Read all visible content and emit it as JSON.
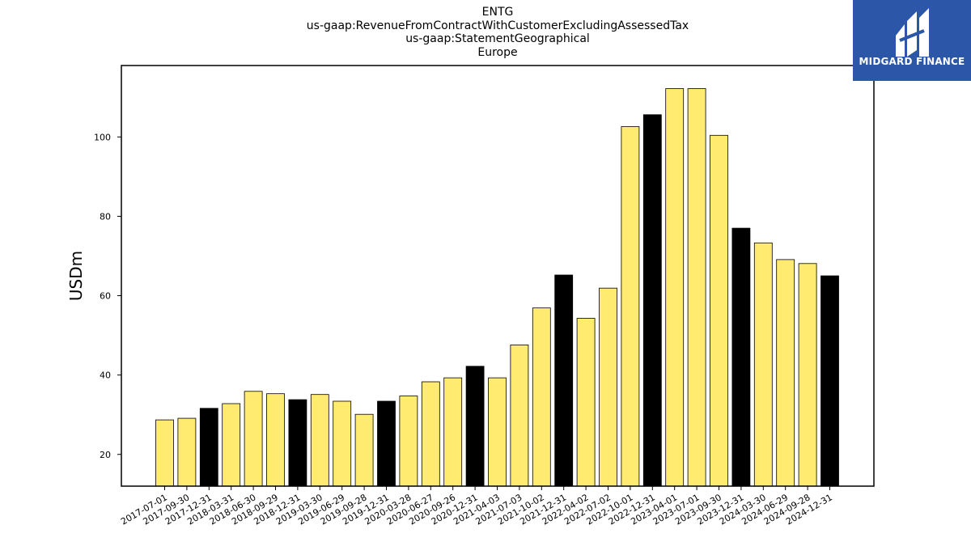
{
  "titles": {
    "line1": "ENTG",
    "line2": "us-gaap:RevenueFromContractWithCustomerExcludingAssessedTax",
    "line3": "us-gaap:StatementGeographical",
    "line4": "Europe"
  },
  "logo": {
    "text": "MIDGARD FINANCE",
    "background": "#2c57a8"
  },
  "chart_data": {
    "type": "bar",
    "ylabel": "USDm",
    "ylim": [
      12,
      118
    ],
    "yticks": [
      20,
      40,
      60,
      80,
      100
    ],
    "grid": false,
    "colors": {
      "quarter": "#ffeb70",
      "fiscal_year_end": "#000000",
      "edge": "#000000"
    },
    "categories": [
      "2017-07-01",
      "2017-09-30",
      "2017-12-31",
      "2018-03-31",
      "2018-06-30",
      "2018-09-29",
      "2018-12-31",
      "2019-03-30",
      "2019-06-29",
      "2019-09-28",
      "2019-12-31",
      "2020-03-28",
      "2020-06-27",
      "2020-09-26",
      "2020-12-31",
      "2021-04-03",
      "2021-07-03",
      "2021-10-02",
      "2021-12-31",
      "2022-04-02",
      "2022-07-02",
      "2022-10-01",
      "2022-12-31",
      "2023-04-01",
      "2023-07-01",
      "2023-09-30",
      "2023-12-31",
      "2024-03-30",
      "2024-06-29",
      "2024-09-28",
      "2024-12-31"
    ],
    "values": [
      28.7,
      29.1,
      31.6,
      32.8,
      35.9,
      35.3,
      33.8,
      35.1,
      33.4,
      30.1,
      33.4,
      34.7,
      38.3,
      39.3,
      42.2,
      39.3,
      47.6,
      56.9,
      65.2,
      54.3,
      61.9,
      102.6,
      105.6,
      112.2,
      112.2,
      100.4,
      77.0,
      73.3,
      69.1,
      68.1,
      65.0
    ],
    "highlighted": [
      false,
      false,
      true,
      false,
      false,
      false,
      true,
      false,
      false,
      false,
      true,
      false,
      false,
      false,
      true,
      false,
      false,
      false,
      true,
      false,
      false,
      false,
      true,
      false,
      false,
      false,
      true,
      false,
      false,
      false,
      true
    ]
  }
}
